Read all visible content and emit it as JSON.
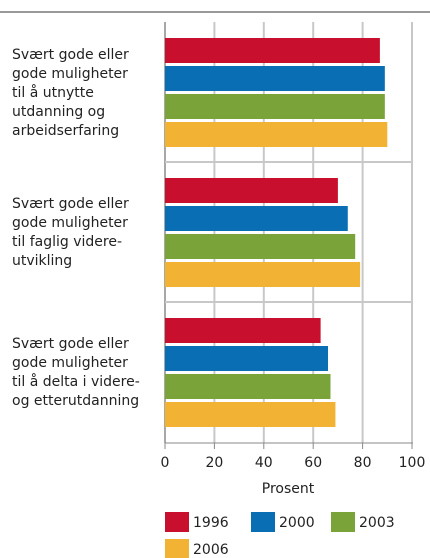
{
  "chart_data": {
    "type": "bar",
    "orientation": "horizontal",
    "categories": [
      "Svært gode eller\ngode muligheter\ntil å utnytte\nutdanning og\narbeidserfaring",
      "Svært gode eller\ngode muligheter\ntil faglig videre-\nutvikling",
      "Svært gode eller\ngode muligheter\ntil å delta i videre-\nog etterutdanning"
    ],
    "series": [
      {
        "name": "1996",
        "color": "#c8102e",
        "values": [
          87,
          70,
          63
        ]
      },
      {
        "name": "2000",
        "color": "#0a6eb4",
        "values": [
          89,
          74,
          66
        ]
      },
      {
        "name": "2003",
        "color": "#7aa33a",
        "values": [
          89,
          77,
          67
        ]
      },
      {
        "name": "2006",
        "color": "#f2b233",
        "values": [
          90,
          79,
          69
        ]
      }
    ],
    "xlabel": "Prosent",
    "xlim": [
      0,
      100
    ],
    "xticks": [
      0,
      20,
      40,
      60,
      80,
      100
    ],
    "grid": true
  }
}
